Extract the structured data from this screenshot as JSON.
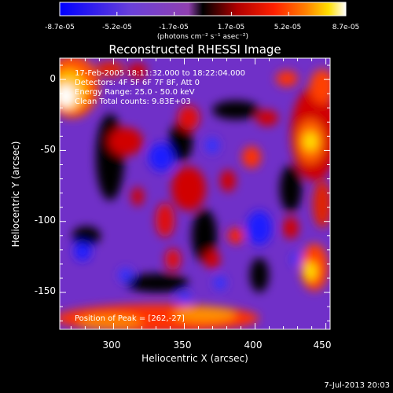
{
  "colorbar": {
    "tick_labels": [
      "-8.7e-05",
      "-5.2e-05",
      "-1.7e-05",
      "1.7e-05",
      "5.2e-05",
      "8.7e-05"
    ],
    "unit_label": "(photons cm⁻² s⁻¹ asec⁻²)",
    "colors": [
      "#0000ff",
      "#3030ff",
      "#6a40d8",
      "#9040b0",
      "#000000",
      "#b00000",
      "#ff2000",
      "#ff8000",
      "#ffe000",
      "#ffffff"
    ]
  },
  "plot": {
    "title": "Reconstructed RHESSI Image",
    "annotations": [
      "17-Feb-2005 18:11:32.000 to 18:22:04.000",
      "Detectors: 4F 5F 6F 7F 8F, Att 0",
      "Energy Range: 25.0 - 50.0 keV",
      "Clean    Total counts: 9.83E+03"
    ],
    "peak_text": "Position of Peak = [262,-27]"
  },
  "chart_data": {
    "type": "heatmap",
    "title": "Reconstructed RHESSI Image",
    "xlabel": "Heliocentric X (arcsec)",
    "ylabel": "Heliocentric Y (arcsec)",
    "xlim": [
      262,
      453
    ],
    "ylim": [
      -176,
      15
    ],
    "x_ticks": [
      300,
      350,
      400,
      450
    ],
    "y_ticks": [
      0,
      -50,
      -100,
      -150
    ],
    "color_range": [
      -8.7e-05,
      8.7e-05
    ],
    "peak": [
      262,
      -27
    ]
  },
  "timestamp": "7-Jul-2013 20:03"
}
